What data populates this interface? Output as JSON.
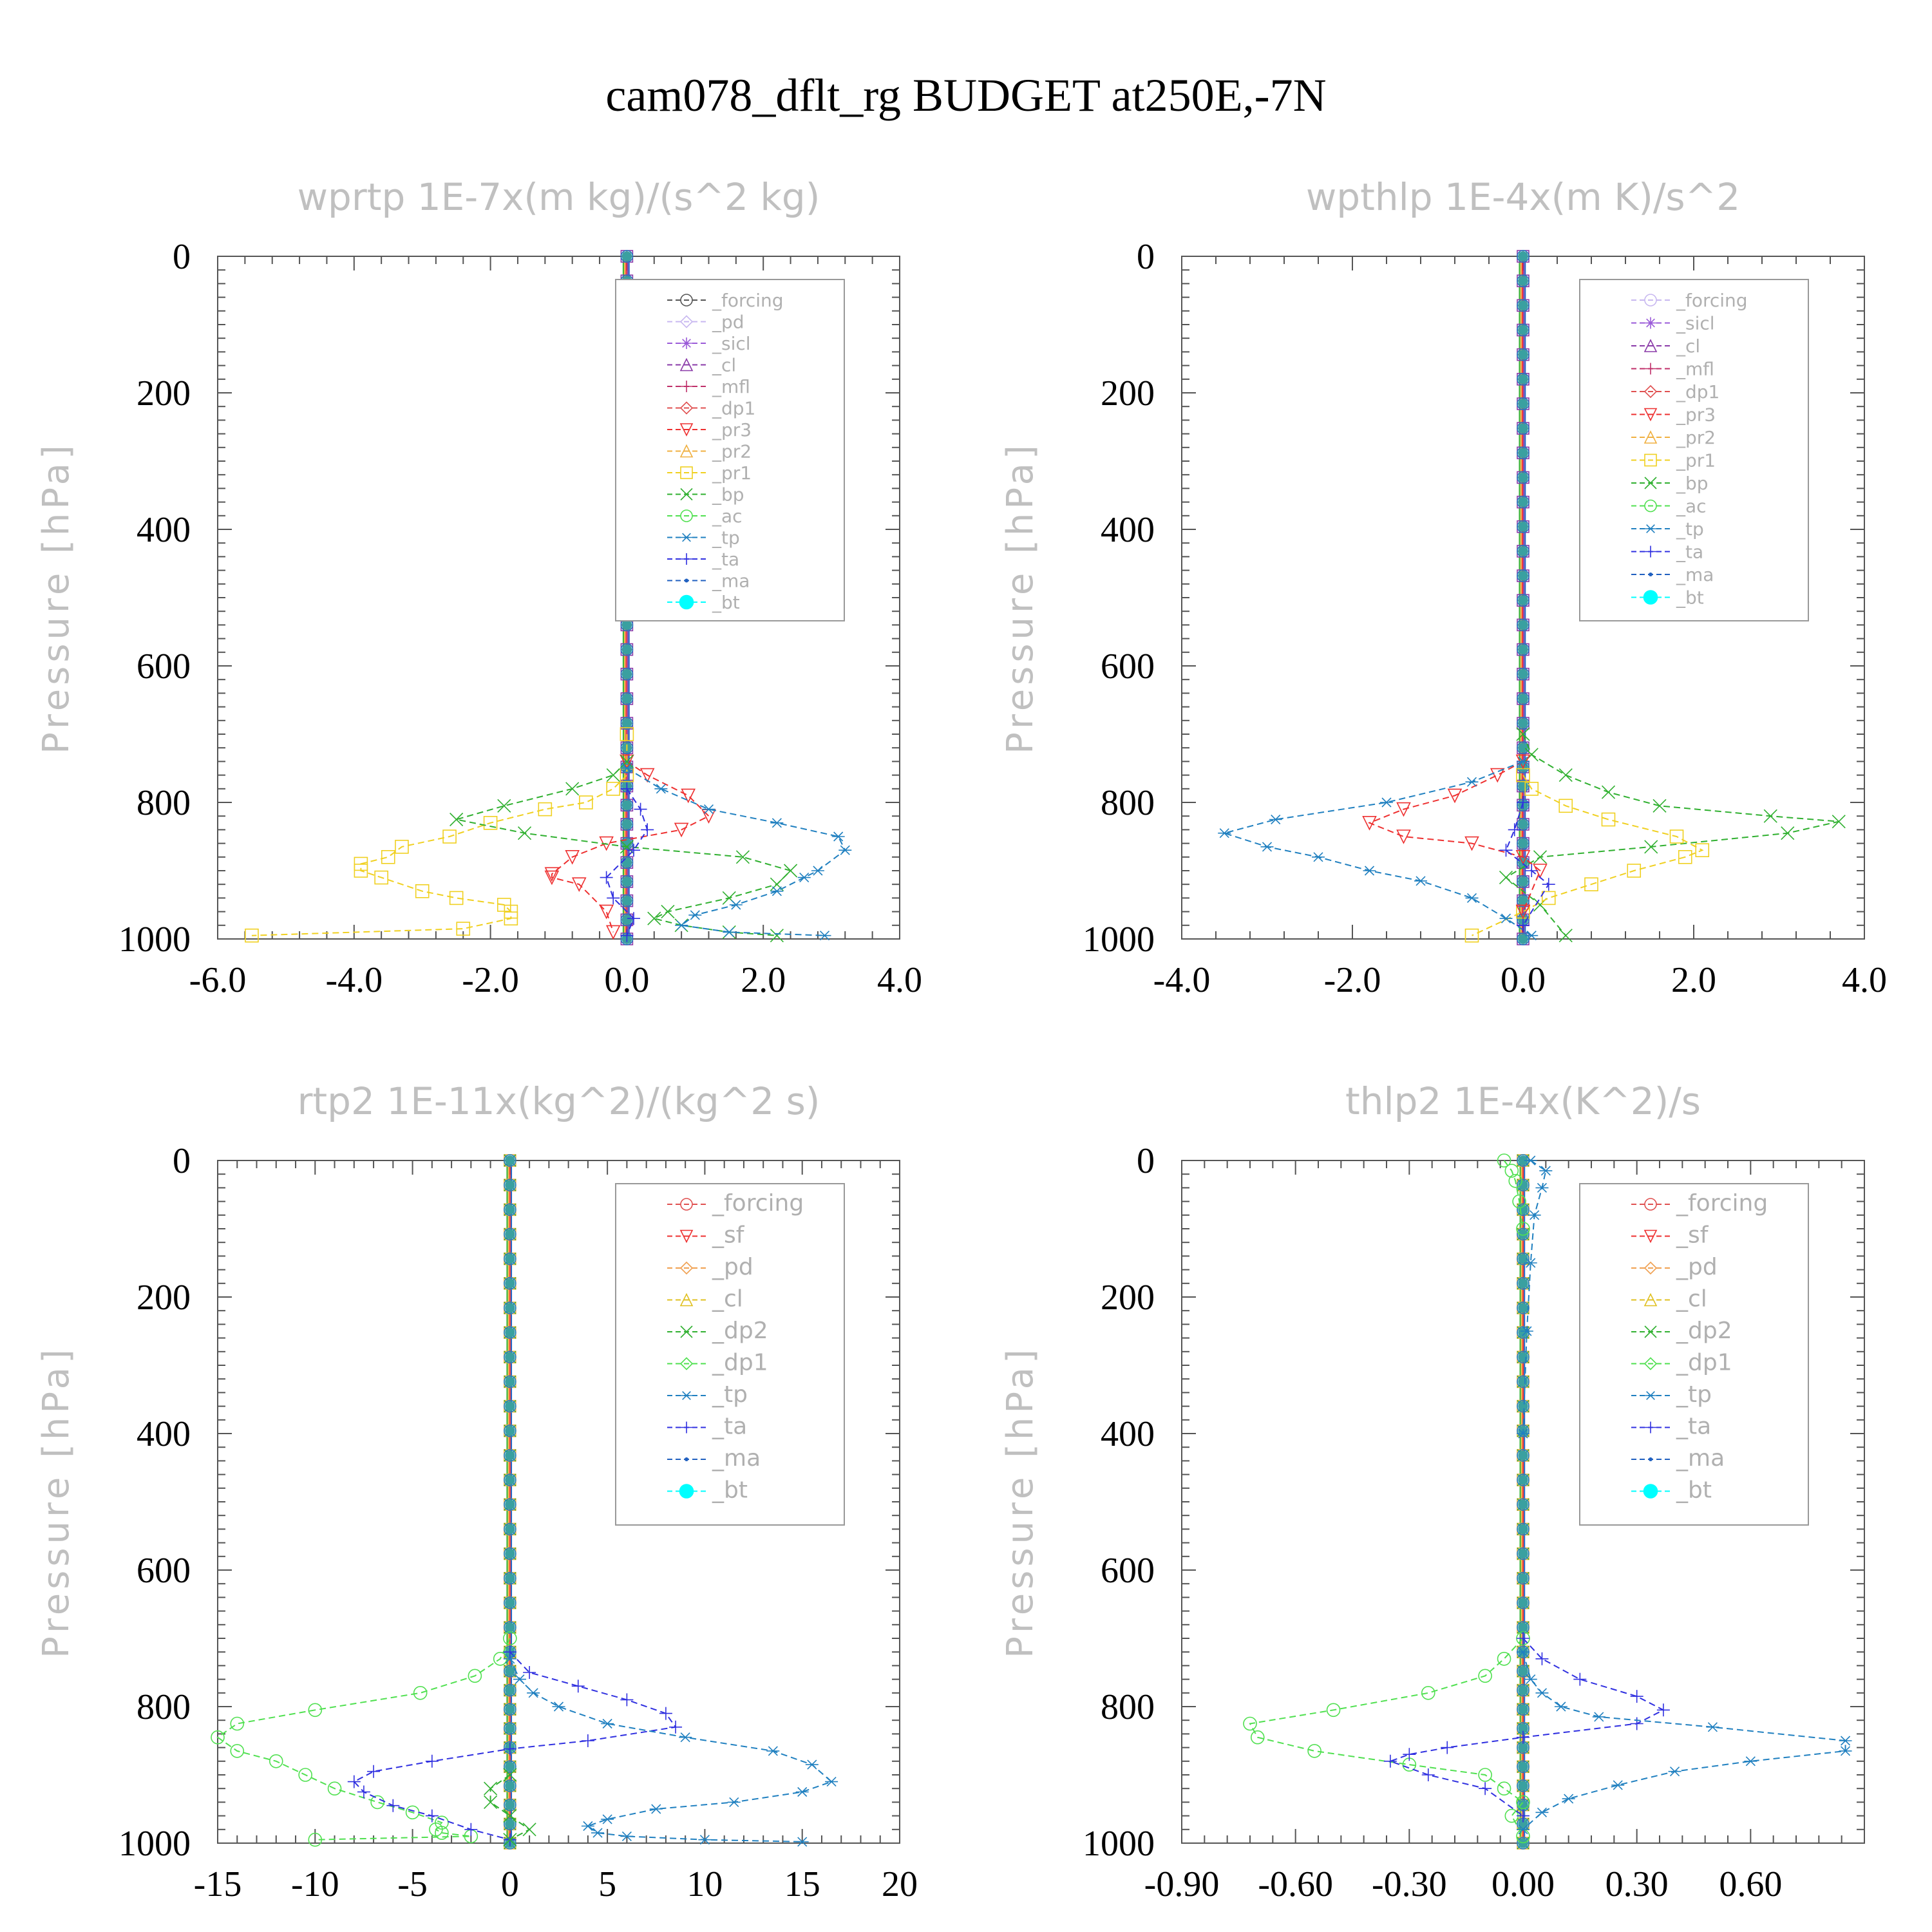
{
  "title": "cam078_dflt_rg  BUDGET at250E,-7N",
  "colors": {
    "forcing": "#555555",
    "pd": "#c8b8f0",
    "sicl": "#9a5ad8",
    "cl": "#8a3aa8",
    "mfl": "#c0306a",
    "dp1": "#e05050",
    "pr3": "#ee3030",
    "pr2": "#f0b040",
    "pr1": "#f0d020",
    "bp": "#30b030",
    "ac": "#50e050",
    "tp": "#2080c0",
    "ta": "#3030e0",
    "ma": "#2060c0",
    "bt": "#00ffff",
    "forcing_b": "#e05050",
    "sf": "#ee3030",
    "pd_b": "#f0a050",
    "cl_b": "#e0c020",
    "dp2": "#30b030",
    "dp1_b": "#50e050"
  },
  "chart_data": [
    {
      "type": "line",
      "title": "wprtp  1E-7x(m kg)/(s^2 kg)",
      "ylabel": "Pressure [hPa]",
      "xlim": [
        -6.0,
        4.0
      ],
      "ylim": [
        1000,
        0
      ],
      "xticks": [
        "-6.0",
        "-4.0",
        "-2.0",
        "0.0",
        "2.0",
        "4.0"
      ],
      "xtick_values": [
        -6,
        -4,
        -2,
        0,
        2,
        4
      ],
      "yticks": [
        "0",
        "200",
        "400",
        "600",
        "800",
        "1000"
      ],
      "ytick_values": [
        0,
        200,
        400,
        600,
        800,
        1000
      ],
      "legend": [
        "_forcing",
        "_pd",
        "_sicl",
        "_cl",
        "_mfl",
        "_dp1",
        "_pr3",
        "_pr2",
        "_pr1",
        "_bp",
        "_ac",
        "_tp",
        "_ta",
        "_ma",
        "_bt"
      ],
      "series": [
        {
          "name": "_pr1",
          "color": "pr1",
          "marker": "square",
          "x": [
            0.0,
            0.0,
            -0.2,
            -0.6,
            -1.2,
            -2.0,
            -2.6,
            -3.3,
            -3.5,
            -3.9,
            -3.9,
            -3.6,
            -3.0,
            -2.5,
            -1.8,
            -1.7,
            -1.7,
            -2.4,
            -5.5
          ],
          "y": [
            700,
            760,
            780,
            800,
            810,
            830,
            850,
            865,
            880,
            890,
            900,
            910,
            930,
            940,
            950,
            960,
            970,
            985,
            995
          ]
        },
        {
          "name": "_pr3",
          "color": "pr3",
          "marker": "triangle-down",
          "x": [
            0.0,
            0.3,
            0.9,
            1.2,
            0.8,
            -0.3,
            -0.8,
            -1.1,
            -1.1,
            -0.7,
            -0.3,
            -0.2
          ],
          "y": [
            740,
            760,
            790,
            820,
            840,
            860,
            880,
            905,
            910,
            920,
            960,
            990
          ]
        },
        {
          "name": "_bp",
          "color": "bp",
          "marker": "x",
          "x": [
            0.0,
            -0.2,
            -0.8,
            -1.8,
            -2.5,
            -1.5,
            0.0,
            1.7,
            2.4,
            2.2,
            1.5,
            0.6,
            0.4,
            0.8,
            1.5,
            2.2
          ],
          "y": [
            740,
            760,
            780,
            805,
            825,
            845,
            865,
            880,
            900,
            920,
            940,
            960,
            970,
            980,
            990,
            995
          ]
        },
        {
          "name": "_tp",
          "color": "tp",
          "marker": "asterisk",
          "x": [
            0.0,
            0.5,
            1.2,
            2.2,
            3.1,
            3.2,
            2.8,
            2.6,
            2.2,
            1.6,
            1.0,
            0.8,
            1.5,
            2.9
          ],
          "y": [
            750,
            780,
            810,
            830,
            850,
            870,
            900,
            910,
            930,
            950,
            965,
            980,
            990,
            995
          ]
        },
        {
          "name": "_ta",
          "color": "ta",
          "marker": "plus",
          "x": [
            0.0,
            0.2,
            0.3,
            0.1,
            -0.3,
            -0.2,
            0.1,
            0.0
          ],
          "y": [
            780,
            810,
            840,
            870,
            910,
            940,
            970,
            995
          ]
        }
      ]
    },
    {
      "type": "line",
      "title": "wpthlp  1E-4x(m K)/s^2",
      "ylabel": "Pressure [hPa]",
      "xlim": [
        -4.0,
        4.0
      ],
      "ylim": [
        1000,
        0
      ],
      "xticks": [
        "-4.0",
        "-2.0",
        "0.0",
        "2.0",
        "4.0"
      ],
      "xtick_values": [
        -4,
        -2,
        0,
        2,
        4
      ],
      "yticks": [
        "0",
        "200",
        "400",
        "600",
        "800",
        "1000"
      ],
      "ytick_values": [
        0,
        200,
        400,
        600,
        800,
        1000
      ],
      "legend": [
        "_forcing",
        "_sicl",
        "_cl",
        "_mfl",
        "_dp1",
        "_pr3",
        "_pr2",
        "_pr1",
        "_bp",
        "_ac",
        "_tp",
        "_ta",
        "_ma",
        "_bt"
      ],
      "series": [
        {
          "name": "_bp",
          "color": "bp",
          "marker": "x",
          "x": [
            0.0,
            0.1,
            0.5,
            1.0,
            1.6,
            2.9,
            3.7,
            3.1,
            1.5,
            0.2,
            -0.2,
            0.2,
            0.5
          ],
          "y": [
            700,
            730,
            760,
            785,
            805,
            820,
            828,
            845,
            865,
            880,
            910,
            950,
            995
          ]
        },
        {
          "name": "_pr1",
          "color": "pr1",
          "marker": "square",
          "x": [
            0.0,
            0.1,
            0.5,
            1.0,
            1.8,
            2.1,
            1.9,
            1.3,
            0.8,
            0.3,
            0.0,
            -0.6
          ],
          "y": [
            760,
            780,
            805,
            825,
            850,
            870,
            880,
            900,
            920,
            940,
            960,
            995
          ]
        },
        {
          "name": "_pr3",
          "color": "pr3",
          "marker": "triangle-down",
          "x": [
            0.0,
            -0.3,
            -0.8,
            -1.4,
            -1.8,
            -1.4,
            -0.6,
            0.0,
            0.2,
            0.0
          ],
          "y": [
            740,
            760,
            790,
            810,
            830,
            850,
            860,
            880,
            900,
            960
          ]
        },
        {
          "name": "_tp",
          "color": "tp",
          "marker": "asterisk",
          "x": [
            0.0,
            -0.6,
            -1.6,
            -2.9,
            -3.5,
            -3.0,
            -2.4,
            -1.8,
            -1.2,
            -0.6,
            -0.2,
            0.1
          ],
          "y": [
            740,
            770,
            800,
            825,
            845,
            865,
            880,
            900,
            915,
            940,
            970,
            995
          ]
        },
        {
          "name": "_ta",
          "color": "ta",
          "marker": "plus",
          "x": [
            0.0,
            -0.1,
            -0.2,
            0.1,
            0.3,
            0.0
          ],
          "y": [
            800,
            840,
            870,
            900,
            920,
            980
          ]
        }
      ]
    },
    {
      "type": "line",
      "title": "rtp2  1E-11x(kg^2)/(kg^2 s)",
      "ylabel": "Pressure [hPa]",
      "xlim": [
        -15,
        20
      ],
      "ylim": [
        1000,
        0
      ],
      "xticks": [
        "-15",
        "-10",
        "-5",
        "0",
        "5",
        "10",
        "15",
        "20"
      ],
      "xtick_values": [
        -15,
        -10,
        -5,
        0,
        5,
        10,
        15,
        20
      ],
      "yticks": [
        "0",
        "200",
        "400",
        "600",
        "800",
        "1000"
      ],
      "ytick_values": [
        0,
        200,
        400,
        600,
        800,
        1000
      ],
      "legend": [
        "_forcing",
        "_sf",
        "_pd",
        "_cl",
        "_dp2",
        "_dp1",
        "_tp",
        "_ta",
        "_ma",
        "_bt"
      ],
      "series": [
        {
          "name": "_dp1",
          "color": "dp1_b",
          "marker": "circle",
          "x": [
            0.0,
            -0.5,
            -1.8,
            -4.6,
            -10.0,
            -14.0,
            -15.0,
            -14.0,
            -12.0,
            -10.5,
            -9.0,
            -6.8,
            -5.0,
            -3.5,
            -3.8,
            -3.5,
            -2.0,
            -10.0
          ],
          "y": [
            700,
            730,
            755,
            780,
            805,
            825,
            845,
            865,
            880,
            900,
            920,
            940,
            955,
            970,
            980,
            985,
            990,
            995
          ]
        },
        {
          "name": "_ta",
          "color": "ta",
          "marker": "plus",
          "x": [
            0.0,
            1.0,
            3.5,
            6.0,
            8.0,
            8.5,
            4.0,
            0.0,
            -4.0,
            -7.0,
            -8.0,
            -7.5,
            -6.0,
            -4.0,
            -2.0,
            0.0
          ],
          "y": [
            720,
            750,
            770,
            790,
            810,
            830,
            850,
            862,
            880,
            895,
            910,
            925,
            945,
            960,
            980,
            995
          ]
        },
        {
          "name": "_tp",
          "color": "tp",
          "marker": "asterisk",
          "x": [
            0.0,
            0.5,
            1.2,
            2.5,
            5.0,
            9.0,
            13.5,
            15.5,
            16.5,
            15.0,
            11.5,
            7.5,
            5.0,
            4.0,
            4.5,
            6.0,
            10.0,
            15.0
          ],
          "y": [
            730,
            760,
            780,
            800,
            825,
            845,
            865,
            885,
            910,
            925,
            940,
            950,
            965,
            975,
            985,
            990,
            995,
            998
          ]
        },
        {
          "name": "_dp2",
          "color": "dp2",
          "marker": "x",
          "x": [
            0.0,
            -1.0,
            -1.0,
            0.0,
            1.0,
            0.0
          ],
          "y": [
            900,
            920,
            940,
            960,
            980,
            995
          ]
        }
      ]
    },
    {
      "type": "line",
      "title": "thlp2  1E-4x(K^2)/s",
      "ylabel": "Pressure [hPa]",
      "xlim": [
        -0.9,
        0.9
      ],
      "ylim": [
        1000,
        0
      ],
      "xticks": [
        "-0.90",
        "-0.60",
        "-0.30",
        "0.00",
        "0.30",
        "0.60"
      ],
      "xtick_values": [
        -0.9,
        -0.6,
        -0.3,
        0.0,
        0.3,
        0.6
      ],
      "yticks": [
        "0",
        "200",
        "400",
        "600",
        "800",
        "1000"
      ],
      "ytick_values": [
        0,
        200,
        400,
        600,
        800,
        1000
      ],
      "legend": [
        "_forcing",
        "_sf",
        "_pd",
        "_cl",
        "_dp2",
        "_dp1",
        "_tp",
        "_ta",
        "_ma",
        "_bt"
      ],
      "series": [
        {
          "name": "_dp1",
          "color": "dp1_b",
          "marker": "circle",
          "x": [
            0.0,
            -0.05,
            -0.1,
            -0.25,
            -0.5,
            -0.72,
            -0.7,
            -0.55,
            -0.3,
            -0.1,
            -0.05,
            0.0,
            -0.03,
            0.0
          ],
          "y": [
            700,
            730,
            755,
            780,
            805,
            825,
            845,
            865,
            885,
            900,
            920,
            940,
            960,
            990
          ]
        },
        {
          "name": "_ta",
          "color": "ta",
          "marker": "plus",
          "x": [
            0.0,
            0.05,
            0.15,
            0.3,
            0.37,
            0.3,
            0.0,
            -0.2,
            -0.3,
            -0.35,
            -0.25,
            -0.1,
            0.0
          ],
          "y": [
            700,
            730,
            760,
            785,
            805,
            825,
            845,
            860,
            870,
            880,
            900,
            920,
            960
          ]
        },
        {
          "name": "_tp",
          "color": "tp",
          "marker": "asterisk",
          "x": [
            0.0,
            0.02,
            0.05,
            0.1,
            0.2,
            0.5,
            0.85,
            0.85,
            0.6,
            0.4,
            0.25,
            0.12,
            0.05,
            0.0
          ],
          "y": [
            720,
            760,
            780,
            800,
            815,
            830,
            850,
            865,
            880,
            895,
            915,
            935,
            955,
            980
          ]
        },
        {
          "name": "_tp_top",
          "color": "tp",
          "marker": "asterisk",
          "x": [
            0.02,
            0.06,
            0.05,
            0.03,
            0.02,
            0.01,
            0.0
          ],
          "y": [
            0,
            15,
            40,
            80,
            150,
            250,
            400
          ]
        },
        {
          "name": "_dp1_top",
          "color": "dp1_b",
          "marker": "circle",
          "x": [
            -0.05,
            -0.03,
            -0.02,
            -0.01,
            0.0
          ],
          "y": [
            0,
            15,
            30,
            60,
            100
          ]
        }
      ]
    }
  ]
}
